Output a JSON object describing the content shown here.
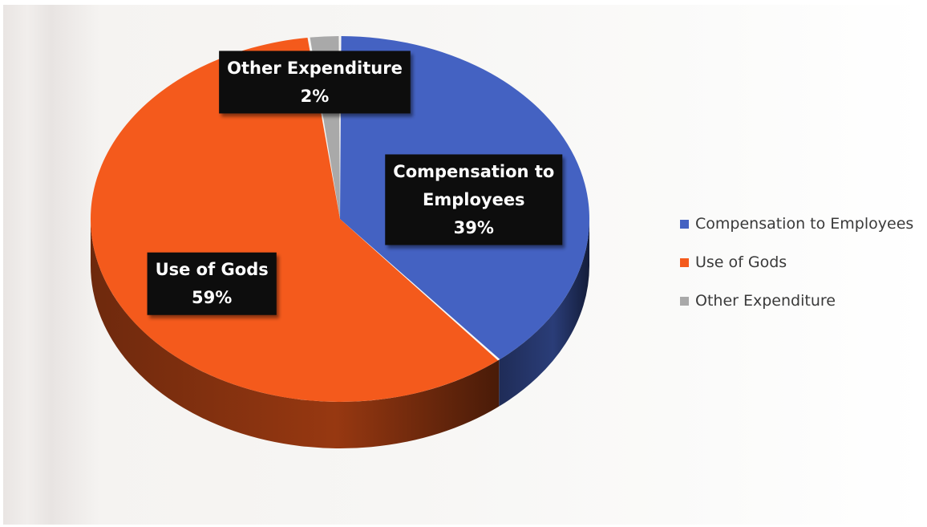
{
  "chart_data": {
    "type": "pie",
    "title": "",
    "categories": [
      "Compensation to Employees",
      "Use of Gods",
      "Other Expenditure"
    ],
    "values": [
      39,
      59,
      2
    ],
    "unit": "%",
    "data_labels": [
      {
        "lines": [
          "Compensation to",
          "Employees"
        ],
        "value_text": "39%"
      },
      {
        "lines": [
          "Use of Gods"
        ],
        "value_text": "59%"
      },
      {
        "lines": [
          "Other Expenditure"
        ],
        "value_text": "2%"
      }
    ],
    "colors": [
      "#4462c2",
      "#f45a1c",
      "#a9a9a9"
    ],
    "legend_position": "right",
    "style": "3d-pie"
  }
}
